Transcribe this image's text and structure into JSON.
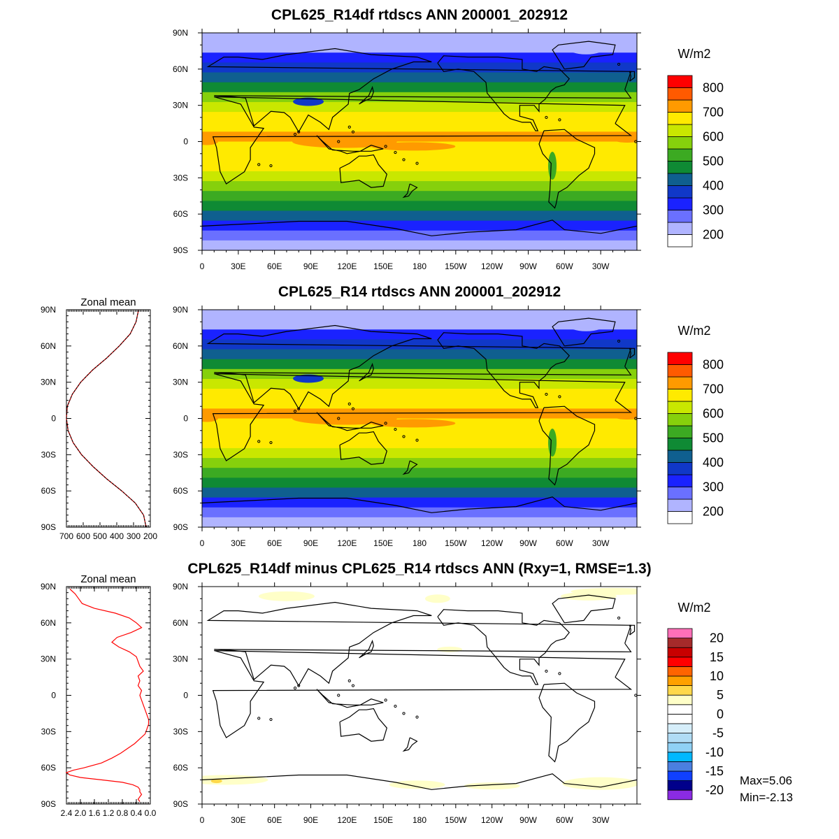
{
  "chart_data": [
    {
      "type": "heatmap",
      "title": "CPL625_R14df rtdscs ANN 200001_202912",
      "units": "W/m2",
      "lat_ticks": [
        "90N",
        "60N",
        "30N",
        "0",
        "30S",
        "60S",
        "90S"
      ],
      "lon_ticks": [
        "0",
        "30E",
        "60E",
        "90E",
        "120E",
        "150E",
        "180",
        "150W",
        "120W",
        "90W",
        "60W",
        "30W"
      ],
      "colorbar": {
        "labels": [
          "800",
          "700",
          "600",
          "500",
          "400",
          "300",
          "200"
        ],
        "colors": [
          "#ffffff",
          "#b0b4ff",
          "#6a70ff",
          "#1a22ff",
          "#1038c8",
          "#0f5f8f",
          "#0f8a34",
          "#3caa22",
          "#86d00c",
          "#c9e700",
          "#ffea00",
          "#ff9a00",
          "#ff5a00",
          "#ff0000"
        ]
      },
      "lat_bands": [
        200,
        245,
        310,
        360,
        420,
        490,
        560,
        620,
        660,
        690,
        700,
        690,
        680,
        660,
        630,
        590,
        540,
        480,
        410,
        340,
        260,
        230
      ]
    },
    {
      "type": "heatmap",
      "title": "CPL625_R14 rtdscs ANN 200001_202912",
      "units": "W/m2",
      "lat_ticks": [
        "90N",
        "60N",
        "30N",
        "0",
        "30S",
        "60S",
        "90S"
      ],
      "lon_ticks": [
        "0",
        "30E",
        "60E",
        "90E",
        "120E",
        "150E",
        "180",
        "150W",
        "120W",
        "90W",
        "60W",
        "30W"
      ],
      "colorbar": {
        "labels": [
          "800",
          "700",
          "600",
          "500",
          "400",
          "300",
          "200"
        ],
        "colors": [
          "#ffffff",
          "#b0b4ff",
          "#6a70ff",
          "#1a22ff",
          "#1038c8",
          "#0f5f8f",
          "#0f8a34",
          "#3caa22",
          "#86d00c",
          "#c9e700",
          "#ffea00",
          "#ff9a00",
          "#ff5a00",
          "#ff0000"
        ]
      },
      "lat_bands": [
        200,
        245,
        310,
        360,
        420,
        490,
        560,
        620,
        660,
        690,
        700,
        690,
        680,
        660,
        630,
        590,
        540,
        480,
        410,
        340,
        260,
        230
      ],
      "zonal_mean": {
        "title": "Zonal mean",
        "x_ticks": [
          "700",
          "600",
          "500",
          "400",
          "300",
          "200"
        ],
        "xlim": [
          700,
          200
        ],
        "lat_ticks": [
          "90N",
          "60N",
          "30N",
          "0",
          "30S",
          "60S",
          "90S"
        ],
        "lat": [
          90,
          80,
          70,
          60,
          50,
          40,
          30,
          20,
          10,
          0,
          -10,
          -20,
          -30,
          -40,
          -50,
          -60,
          -70,
          -80,
          -90
        ],
        "values": [
          270,
          285,
          320,
          385,
          460,
          545,
          615,
          665,
          695,
          700,
          690,
          660,
          610,
          540,
          460,
          370,
          290,
          240,
          225
        ]
      }
    },
    {
      "type": "heatmap",
      "title": "CPL625_R14df minus CPL625_R14 rtdscs ANN (Rxy=1, RMSE=1.3)",
      "units": "W/m2",
      "lat_ticks": [
        "90N",
        "60N",
        "30N",
        "0",
        "30S",
        "60S",
        "90S"
      ],
      "lon_ticks": [
        "0",
        "30E",
        "60E",
        "90E",
        "120E",
        "150E",
        "180",
        "150W",
        "120W",
        "90W",
        "60W",
        "30W"
      ],
      "colorbar": {
        "labels": [
          "20",
          "15",
          "10",
          "5",
          "0",
          "-5",
          "-10",
          "-15",
          "-20"
        ],
        "colors": [
          "#8a2be2",
          "#00008b",
          "#1040ff",
          "#4a7fe0",
          "#00b8ff",
          "#8fd1f5",
          "#b0dcf5",
          "#d6eefa",
          "#ffffff",
          "#ffffff",
          "#ffffc8",
          "#ffd84a",
          "#ffa000",
          "#ff6400",
          "#ff0000",
          "#c80000",
          "#a52a2a",
          "#ff70b8"
        ]
      },
      "stats": {
        "max": "Max=5.06",
        "min": "Min=-2.13"
      },
      "zonal_mean": {
        "title": "Zonal mean",
        "x_ticks": [
          "2.4",
          "2.0",
          "1.6",
          "1.2",
          "0.8",
          "0.4",
          "0.0"
        ],
        "xlim": [
          2.4,
          0.0
        ],
        "lat_ticks": [
          "90N",
          "60N",
          "30N",
          "0",
          "30S",
          "60S",
          "90S"
        ],
        "lat": [
          88,
          84,
          80,
          76,
          72,
          68,
          64,
          60,
          56,
          52,
          48,
          44,
          40,
          36,
          32,
          28,
          24,
          20,
          16,
          12,
          8,
          4,
          0,
          -4,
          -8,
          -12,
          -16,
          -20,
          -24,
          -28,
          -32,
          -36,
          -40,
          -44,
          -48,
          -52,
          -56,
          -60,
          -62,
          -64,
          -66,
          -68,
          -70,
          -72,
          -74,
          -76,
          -78,
          -80,
          -82,
          -84,
          -86,
          -88
        ],
        "values": [
          2.3,
          2.15,
          2.05,
          1.95,
          1.6,
          1.0,
          0.6,
          0.4,
          0.25,
          0.55,
          0.95,
          1.1,
          0.9,
          0.6,
          0.4,
          0.35,
          0.3,
          0.2,
          0.35,
          0.3,
          0.35,
          0.25,
          0.3,
          0.25,
          0.2,
          0.15,
          0.1,
          0.05,
          0.05,
          0.1,
          0.15,
          0.3,
          0.45,
          0.65,
          0.85,
          1.1,
          1.4,
          1.9,
          2.2,
          2.4,
          2.3,
          2.0,
          1.4,
          0.8,
          0.5,
          0.35,
          0.3,
          0.3,
          0.25,
          0.3,
          0.35,
          0.3
        ]
      }
    }
  ]
}
